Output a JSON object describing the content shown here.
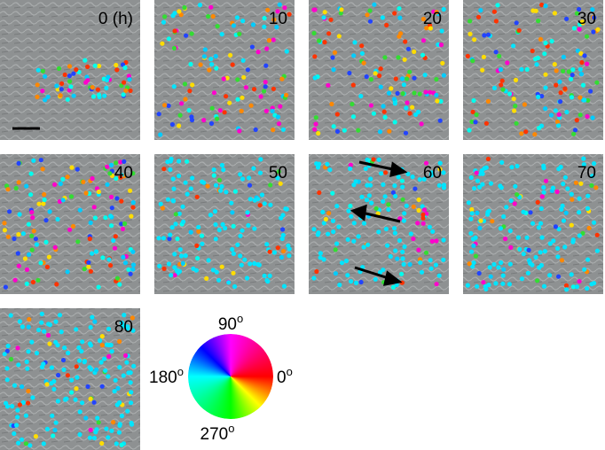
{
  "panels": [
    {
      "label": "0 (h)"
    },
    {
      "label": "10"
    },
    {
      "label": "20"
    },
    {
      "label": "30"
    },
    {
      "label": "40"
    },
    {
      "label": "50"
    },
    {
      "label": "60"
    },
    {
      "label": "70"
    },
    {
      "label": "80"
    }
  ],
  "color_wheel": {
    "labels": [
      {
        "number": "90",
        "sup": "o"
      },
      {
        "number": "0",
        "sup": "o"
      },
      {
        "number": "180",
        "sup": "o"
      },
      {
        "number": "270",
        "sup": "o"
      }
    ]
  }
}
